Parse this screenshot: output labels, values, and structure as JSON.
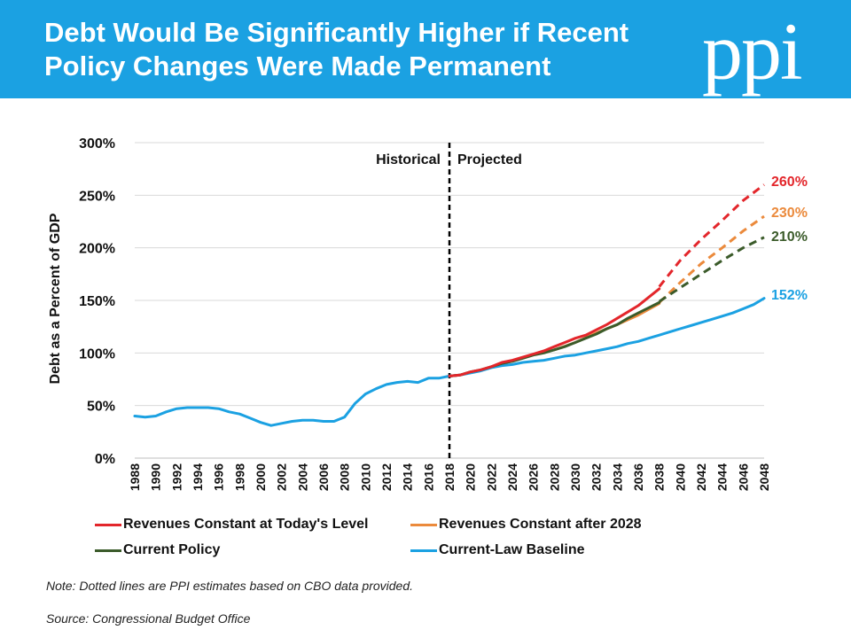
{
  "header": {
    "title_line1": "Debt Would Be Significantly Higher if Recent",
    "title_line2": "Policy Changes Were Made Permanent",
    "logo_text": "ppi"
  },
  "footer": {
    "note": "Note: Dotted lines are PPI estimates based on CBO data provided.",
    "source": "Source: Congressional Budget Office"
  },
  "colors": {
    "banner": "#1ba1e2",
    "revenues_today": "#e3262b",
    "revenues_after_2028": "#eb8a3c",
    "current_policy": "#3b5b2a",
    "baseline": "#1ba1e2"
  },
  "chart_data": {
    "type": "line",
    "ylabel": "Debt as a Percent of GDP",
    "xlabel": "",
    "ylim": [
      0,
      300
    ],
    "yticks": [
      "0%",
      "50%",
      "100%",
      "150%",
      "200%",
      "250%",
      "300%"
    ],
    "xlim": [
      1988,
      2048
    ],
    "xticks": [
      "1988",
      "1990",
      "1992",
      "1994",
      "1996",
      "1998",
      "2000",
      "2002",
      "2004",
      "2006",
      "2008",
      "2010",
      "2012",
      "2014",
      "2016",
      "2018",
      "2020",
      "2022",
      "2024",
      "2026",
      "2028",
      "2030",
      "2032",
      "2034",
      "2036",
      "2038",
      "2040",
      "2042",
      "2044",
      "2046",
      "2048"
    ],
    "grid": "horizontal",
    "legend_position": "bottom",
    "divider_year": 2018,
    "divider_left_label": "Historical",
    "divider_right_label": "Projected",
    "series": [
      {
        "name": "Revenues Constant at Today's Level",
        "solid": {
          "x": [
            2018,
            2019,
            2020,
            2021,
            2022,
            2023,
            2024,
            2025,
            2026,
            2027,
            2028,
            2029,
            2030,
            2031,
            2032,
            2033,
            2034,
            2035,
            2036,
            2037,
            2038
          ],
          "y": [
            78,
            79,
            82,
            84,
            87,
            91,
            93,
            96,
            99,
            102,
            106,
            110,
            114,
            117,
            122,
            127,
            133,
            139,
            145,
            153,
            161
          ]
        },
        "dashed": {
          "x": [
            2038,
            2040,
            2042,
            2044,
            2046,
            2048
          ],
          "y": [
            163,
            188,
            208,
            226,
            245,
            260
          ]
        },
        "end_label": "260%"
      },
      {
        "name": "Revenues Constant after 2028",
        "solid": {
          "x": [
            2028,
            2030,
            2032,
            2034,
            2036,
            2038
          ],
          "y": [
            103,
            110,
            119,
            127,
            136,
            147
          ]
        },
        "dashed": {
          "x": [
            2038,
            2040,
            2042,
            2044,
            2046,
            2048
          ],
          "y": [
            148,
            167,
            185,
            200,
            216,
            230
          ]
        },
        "end_label": "230%"
      },
      {
        "name": "Current Policy",
        "solid": {
          "x": [
            2018,
            2019,
            2020,
            2021,
            2022,
            2023,
            2024,
            2025,
            2026,
            2027,
            2028,
            2029,
            2030,
            2031,
            2032,
            2033,
            2034,
            2035,
            2036,
            2037,
            2038
          ],
          "y": [
            78,
            79,
            82,
            84,
            87,
            90,
            92,
            95,
            98,
            100,
            103,
            106,
            110,
            114,
            118,
            123,
            127,
            133,
            138,
            143,
            148
          ]
        },
        "dashed": {
          "x": [
            2038,
            2040,
            2042,
            2044,
            2046,
            2048
          ],
          "y": [
            149,
            162,
            175,
            188,
            200,
            210
          ]
        },
        "end_label": "210%"
      },
      {
        "name": "Current-Law Baseline",
        "solid": {
          "x": [
            1988,
            1989,
            1990,
            1991,
            1992,
            1993,
            1994,
            1995,
            1996,
            1997,
            1998,
            1999,
            2000,
            2001,
            2002,
            2003,
            2004,
            2005,
            2006,
            2007,
            2008,
            2009,
            2010,
            2011,
            2012,
            2013,
            2014,
            2015,
            2016,
            2017,
            2018,
            2019,
            2020,
            2021,
            2022,
            2023,
            2024,
            2025,
            2026,
            2027,
            2028,
            2029,
            2030,
            2031,
            2032,
            2033,
            2034,
            2035,
            2036,
            2037,
            2038,
            2039,
            2040,
            2041,
            2042,
            2043,
            2044,
            2045,
            2046,
            2047,
            2048
          ],
          "y": [
            40,
            39,
            40,
            44,
            47,
            48,
            48,
            48,
            47,
            44,
            42,
            38,
            34,
            31,
            33,
            35,
            36,
            36,
            35,
            35,
            39,
            52,
            61,
            66,
            70,
            72,
            73,
            72,
            76,
            76,
            78,
            79,
            81,
            83,
            86,
            88,
            89,
            91,
            92,
            93,
            95,
            97,
            98,
            100,
            102,
            104,
            106,
            109,
            111,
            114,
            117,
            120,
            123,
            126,
            129,
            132,
            135,
            138,
            142,
            146,
            152
          ]
        },
        "end_label": "152%"
      }
    ]
  }
}
